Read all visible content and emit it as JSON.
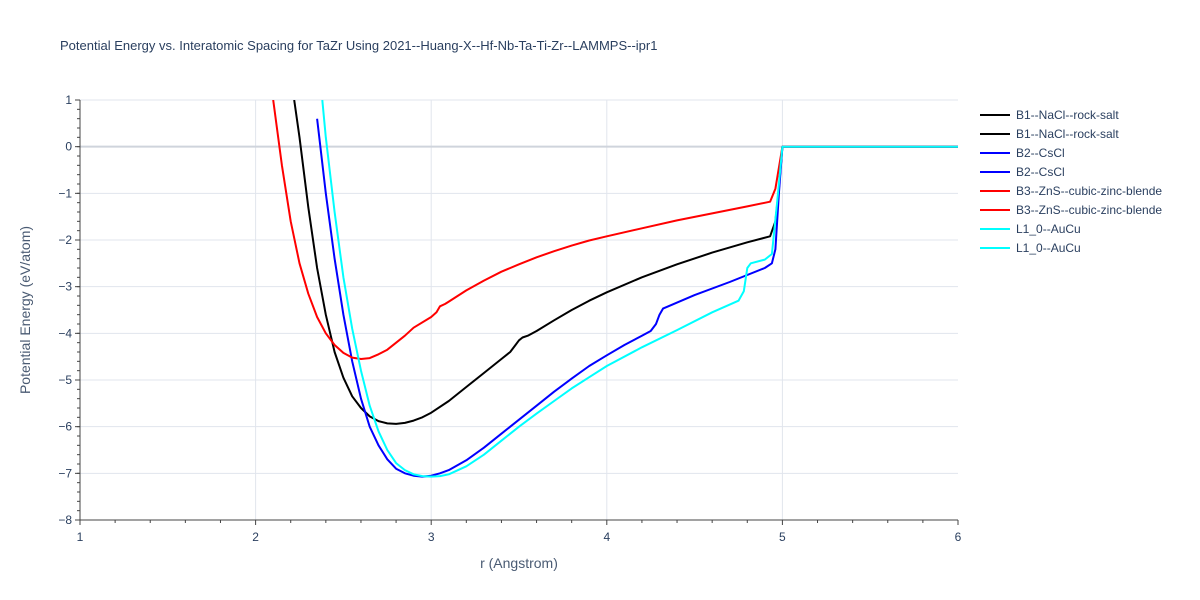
{
  "chart_data": {
    "type": "line",
    "title": "Potential Energy vs. Interatomic Spacing for TaZr Using 2021--Huang-X--Hf-Nb-Ta-Ti-Zr--LAMMPS--ipr1",
    "xlabel": "r (Angstrom)",
    "ylabel": "Potential Energy (eV/atom)",
    "xlim": [
      1,
      6
    ],
    "ylim": [
      -8,
      1
    ],
    "xticks": [
      "1",
      "2",
      "3",
      "4",
      "5",
      "6"
    ],
    "yticks": [
      "1",
      "0",
      "−1",
      "−2",
      "−3",
      "−4",
      "−5",
      "−6",
      "−7",
      "−8"
    ],
    "grid": true,
    "legend_position": "right",
    "series": [
      {
        "name": "B1--NaCl--rock-salt",
        "color": "#000000",
        "x": [
          2.22,
          2.25,
          2.3,
          2.35,
          2.4,
          2.45,
          2.5,
          2.55,
          2.6,
          2.65,
          2.7,
          2.75,
          2.8,
          2.85,
          2.9,
          2.95,
          3.0,
          3.1,
          3.2,
          3.3,
          3.4,
          3.45,
          3.48,
          3.5,
          3.52,
          3.55,
          3.6,
          3.7,
          3.8,
          3.9,
          4.0,
          4.2,
          4.4,
          4.6,
          4.8,
          4.93,
          4.96,
          4.98,
          5.0,
          5.2,
          5.5,
          5.8,
          6.0
        ],
        "y": [
          1.0,
          0.2,
          -1.3,
          -2.6,
          -3.6,
          -4.4,
          -4.95,
          -5.35,
          -5.6,
          -5.78,
          -5.88,
          -5.93,
          -5.94,
          -5.92,
          -5.87,
          -5.8,
          -5.7,
          -5.45,
          -5.15,
          -4.85,
          -4.55,
          -4.4,
          -4.25,
          -4.15,
          -4.09,
          -4.05,
          -3.95,
          -3.72,
          -3.5,
          -3.3,
          -3.12,
          -2.8,
          -2.52,
          -2.27,
          -2.05,
          -1.92,
          -1.6,
          -0.9,
          0.0,
          0.0,
          0.0,
          0.0,
          0.0
        ]
      },
      {
        "name": "B2--CsCl",
        "color": "#0000ff",
        "x": [
          2.35,
          2.4,
          2.45,
          2.5,
          2.55,
          2.6,
          2.65,
          2.7,
          2.75,
          2.8,
          2.85,
          2.9,
          2.95,
          3.0,
          3.05,
          3.1,
          3.2,
          3.3,
          3.4,
          3.5,
          3.6,
          3.7,
          3.8,
          3.9,
          4.0,
          4.1,
          4.2,
          4.25,
          4.28,
          4.3,
          4.32,
          4.35,
          4.5,
          4.7,
          4.9,
          4.94,
          4.96,
          4.98,
          5.0,
          5.3,
          5.6,
          6.0
        ],
        "y": [
          0.6,
          -1.0,
          -2.4,
          -3.6,
          -4.6,
          -5.4,
          -6.0,
          -6.4,
          -6.7,
          -6.9,
          -7.0,
          -7.05,
          -7.07,
          -7.05,
          -7.0,
          -6.93,
          -6.72,
          -6.45,
          -6.15,
          -5.85,
          -5.55,
          -5.25,
          -4.97,
          -4.7,
          -4.47,
          -4.25,
          -4.05,
          -3.95,
          -3.8,
          -3.6,
          -3.47,
          -3.42,
          -3.18,
          -2.9,
          -2.6,
          -2.5,
          -2.2,
          -1.0,
          0.0,
          0.0,
          0.0,
          0.0
        ]
      },
      {
        "name": "B3--ZnS--cubic-zinc-blende",
        "color": "#ff0000",
        "x": [
          2.1,
          2.15,
          2.2,
          2.25,
          2.3,
          2.35,
          2.4,
          2.45,
          2.5,
          2.55,
          2.6,
          2.65,
          2.7,
          2.75,
          2.8,
          2.85,
          2.9,
          3.0,
          3.03,
          3.05,
          3.08,
          3.1,
          3.2,
          3.3,
          3.4,
          3.5,
          3.6,
          3.7,
          3.8,
          3.9,
          4.0,
          4.2,
          4.4,
          4.6,
          4.8,
          4.93,
          4.96,
          4.98,
          5.0,
          5.3,
          5.6,
          6.0
        ],
        "y": [
          1.0,
          -0.4,
          -1.6,
          -2.5,
          -3.15,
          -3.65,
          -4.0,
          -4.25,
          -4.42,
          -4.52,
          -4.55,
          -4.53,
          -4.45,
          -4.35,
          -4.2,
          -4.05,
          -3.88,
          -3.65,
          -3.55,
          -3.42,
          -3.37,
          -3.32,
          -3.08,
          -2.87,
          -2.68,
          -2.52,
          -2.37,
          -2.24,
          -2.12,
          -2.01,
          -1.92,
          -1.75,
          -1.58,
          -1.43,
          -1.28,
          -1.18,
          -0.9,
          -0.45,
          0.0,
          0.0,
          0.0,
          0.0
        ]
      },
      {
        "name": "L1_0--AuCu",
        "color": "#00ffff",
        "x": [
          2.38,
          2.4,
          2.45,
          2.5,
          2.55,
          2.6,
          2.65,
          2.7,
          2.75,
          2.8,
          2.85,
          2.9,
          2.95,
          3.0,
          3.05,
          3.1,
          3.2,
          3.3,
          3.4,
          3.5,
          3.6,
          3.7,
          3.8,
          3.9,
          4.0,
          4.2,
          4.4,
          4.6,
          4.75,
          4.78,
          4.8,
          4.82,
          4.9,
          4.94,
          4.97,
          5.0,
          5.3,
          5.6,
          6.0
        ],
        "y": [
          1.0,
          0.2,
          -1.4,
          -2.8,
          -3.9,
          -4.8,
          -5.55,
          -6.1,
          -6.5,
          -6.78,
          -6.93,
          -7.02,
          -7.06,
          -7.07,
          -7.06,
          -7.02,
          -6.85,
          -6.6,
          -6.3,
          -6.0,
          -5.72,
          -5.45,
          -5.18,
          -4.94,
          -4.7,
          -4.3,
          -3.93,
          -3.55,
          -3.3,
          -3.1,
          -2.6,
          -2.5,
          -2.42,
          -2.3,
          -1.2,
          0.0,
          0.0,
          0.0,
          0.0
        ]
      }
    ],
    "legend": [
      "B1--NaCl--rock-salt",
      "B1--NaCl--rock-salt",
      "B2--CsCl",
      "B2--CsCl",
      "B3--ZnS--cubic-zinc-blende",
      "B3--ZnS--cubic-zinc-blende",
      "L1_0--AuCu",
      "L1_0--AuCu"
    ],
    "legend_colors": [
      "#000000",
      "#000000",
      "#0000ff",
      "#0000ff",
      "#ff0000",
      "#ff0000",
      "#00ffff",
      "#00ffff"
    ]
  }
}
